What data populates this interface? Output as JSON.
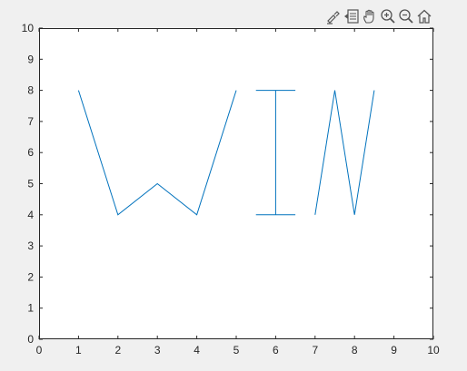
{
  "toolbar": {
    "icons": [
      "brush-icon",
      "datatip-icon",
      "pan-hand-icon",
      "zoom-in-icon",
      "zoom-out-icon",
      "home-icon"
    ]
  },
  "colors": {
    "figure_background": "#f0f0f0",
    "axes_background": "#ffffff",
    "line": "#0072bd",
    "axis": "#262626"
  },
  "chart_data": {
    "type": "line",
    "title": "",
    "xlabel": "",
    "ylabel": "",
    "xlim": [
      0,
      10
    ],
    "ylim": [
      0,
      10
    ],
    "xticks": [
      0,
      1,
      2,
      3,
      4,
      5,
      6,
      7,
      8,
      9,
      10
    ],
    "yticks": [
      0,
      1,
      2,
      3,
      4,
      5,
      6,
      7,
      8,
      9,
      10
    ],
    "grid": false,
    "series": [
      {
        "x": [
          1,
          2,
          3,
          4,
          5
        ],
        "y": [
          8,
          4,
          5,
          4,
          8
        ]
      },
      {
        "x": [
          5.5,
          6.5
        ],
        "y": [
          8,
          8
        ]
      },
      {
        "x": [
          6,
          6
        ],
        "y": [
          8,
          4
        ]
      },
      {
        "x": [
          5.5,
          6.5
        ],
        "y": [
          4,
          4
        ]
      },
      {
        "x": [
          7,
          7.5,
          8,
          8.5
        ],
        "y": [
          4,
          8,
          4,
          8
        ]
      }
    ]
  }
}
